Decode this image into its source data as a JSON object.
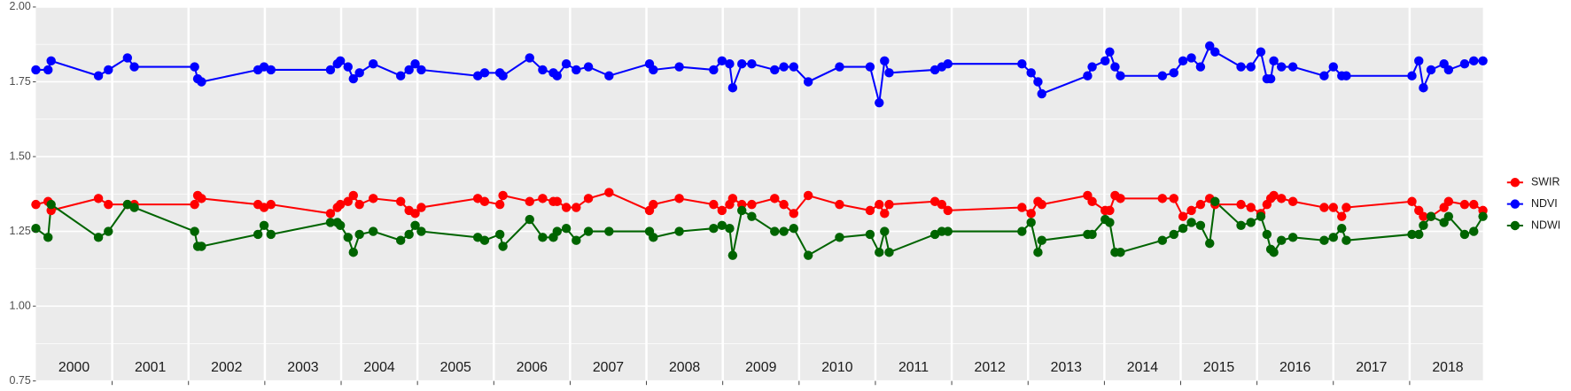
{
  "chart_data": {
    "type": "line",
    "x": [
      2000.0,
      2000.16,
      2000.2,
      2000.82,
      2000.95,
      2001.2,
      2001.29,
      2002.08,
      2002.12,
      2002.17,
      2002.91,
      2002.99,
      2003.08,
      2003.86,
      2003.95,
      2003.99,
      2004.09,
      2004.16,
      2004.24,
      2004.42,
      2004.78,
      2004.89,
      2004.97,
      2005.05,
      2005.79,
      2005.88,
      2006.08,
      2006.12,
      2006.47,
      2006.64,
      2006.78,
      2006.83,
      2006.95,
      2007.08,
      2007.24,
      2007.51,
      2008.04,
      2008.09,
      2008.43,
      2008.88,
      2008.99,
      2009.09,
      2009.13,
      2009.25,
      2009.38,
      2009.68,
      2009.8,
      2009.93,
      2010.12,
      2010.53,
      2010.93,
      2011.05,
      2011.12,
      2011.18,
      2011.78,
      2011.87,
      2011.95,
      2012.92,
      2013.04,
      2013.13,
      2013.18,
      2013.78,
      2013.84,
      2014.01,
      2014.07,
      2014.14,
      2014.21,
      2014.76,
      2014.91,
      2015.03,
      2015.14,
      2015.26,
      2015.38,
      2015.45,
      2015.79,
      2015.92,
      2016.05,
      2016.13,
      2016.18,
      2016.22,
      2016.32,
      2016.47,
      2016.88,
      2017.0,
      2017.11,
      2017.17,
      2018.03,
      2018.12,
      2018.18,
      2018.28,
      2018.45,
      2018.51,
      2018.72,
      2018.84,
      2018.96
    ],
    "series": [
      {
        "name": "SWIR",
        "color": "#ff0000",
        "values": [
          1.34,
          1.35,
          1.32,
          1.36,
          1.34,
          1.34,
          1.34,
          1.34,
          1.37,
          1.36,
          1.34,
          1.33,
          1.34,
          1.31,
          1.33,
          1.34,
          1.35,
          1.37,
          1.34,
          1.36,
          1.35,
          1.32,
          1.31,
          1.33,
          1.36,
          1.35,
          1.34,
          1.37,
          1.35,
          1.36,
          1.35,
          1.35,
          1.33,
          1.33,
          1.36,
          1.38,
          1.32,
          1.34,
          1.36,
          1.34,
          1.32,
          1.34,
          1.36,
          1.34,
          1.34,
          1.36,
          1.34,
          1.31,
          1.37,
          1.34,
          1.32,
          1.34,
          1.31,
          1.34,
          1.35,
          1.34,
          1.32,
          1.33,
          1.31,
          1.35,
          1.34,
          1.37,
          1.35,
          1.32,
          1.32,
          1.37,
          1.36,
          1.36,
          1.36,
          1.3,
          1.32,
          1.34,
          1.36,
          1.34,
          1.34,
          1.33,
          1.31,
          1.34,
          1.36,
          1.37,
          1.36,
          1.35,
          1.33,
          1.33,
          1.3,
          1.33,
          1.35,
          1.32,
          1.3,
          1.3,
          1.33,
          1.35,
          1.34,
          1.34,
          1.32
        ]
      },
      {
        "name": "NDVI",
        "color": "#0000ff",
        "values": [
          1.79,
          1.79,
          1.82,
          1.77,
          1.79,
          1.83,
          1.8,
          1.8,
          1.76,
          1.75,
          1.79,
          1.8,
          1.79,
          1.79,
          1.81,
          1.82,
          1.8,
          1.76,
          1.78,
          1.81,
          1.77,
          1.79,
          1.81,
          1.79,
          1.77,
          1.78,
          1.78,
          1.77,
          1.83,
          1.79,
          1.78,
          1.77,
          1.81,
          1.79,
          1.8,
          1.77,
          1.81,
          1.79,
          1.8,
          1.79,
          1.82,
          1.81,
          1.73,
          1.81,
          1.81,
          1.79,
          1.8,
          1.8,
          1.75,
          1.8,
          1.8,
          1.68,
          1.82,
          1.78,
          1.79,
          1.8,
          1.81,
          1.81,
          1.78,
          1.75,
          1.71,
          1.77,
          1.8,
          1.82,
          1.85,
          1.8,
          1.77,
          1.77,
          1.78,
          1.82,
          1.83,
          1.8,
          1.87,
          1.85,
          1.8,
          1.8,
          1.85,
          1.76,
          1.76,
          1.82,
          1.8,
          1.8,
          1.77,
          1.8,
          1.77,
          1.77,
          1.77,
          1.82,
          1.73,
          1.79,
          1.81,
          1.79,
          1.81,
          1.82,
          1.82
        ]
      },
      {
        "name": "NDWI",
        "color": "#006400",
        "values": [
          1.26,
          1.23,
          1.34,
          1.23,
          1.25,
          1.34,
          1.33,
          1.25,
          1.2,
          1.2,
          1.24,
          1.27,
          1.24,
          1.28,
          1.28,
          1.27,
          1.23,
          1.18,
          1.24,
          1.25,
          1.22,
          1.24,
          1.27,
          1.25,
          1.23,
          1.22,
          1.24,
          1.2,
          1.29,
          1.23,
          1.23,
          1.25,
          1.26,
          1.22,
          1.25,
          1.25,
          1.25,
          1.23,
          1.25,
          1.26,
          1.27,
          1.26,
          1.17,
          1.32,
          1.3,
          1.25,
          1.25,
          1.26,
          1.17,
          1.23,
          1.24,
          1.18,
          1.25,
          1.18,
          1.24,
          1.25,
          1.25,
          1.25,
          1.28,
          1.18,
          1.22,
          1.24,
          1.24,
          1.29,
          1.28,
          1.18,
          1.18,
          1.22,
          1.24,
          1.26,
          1.28,
          1.27,
          1.21,
          1.35,
          1.27,
          1.28,
          1.3,
          1.24,
          1.19,
          1.18,
          1.22,
          1.23,
          1.22,
          1.23,
          1.26,
          1.22,
          1.24,
          1.24,
          1.27,
          1.3,
          1.28,
          1.3,
          1.24,
          1.25,
          1.3
        ]
      }
    ],
    "xlim": [
      2000.0,
      2018.96
    ],
    "ylim": [
      0.75,
      2.0
    ],
    "yticks": [
      {
        "value": 0.75,
        "label": "0.75"
      },
      {
        "value": 1.0,
        "label": "1.00"
      },
      {
        "value": 1.25,
        "label": "1.25"
      },
      {
        "value": 1.5,
        "label": "1.50"
      },
      {
        "value": 1.75,
        "label": "1.75"
      },
      {
        "value": 2.0,
        "label": "2.00"
      }
    ],
    "year_boundaries": [
      2001,
      2002,
      2003,
      2004,
      2005,
      2006,
      2007,
      2008,
      2009,
      2010,
      2011,
      2012,
      2013,
      2014,
      2015,
      2016,
      2017,
      2018
    ],
    "year_labels": [
      {
        "value": 2000.5,
        "label": "2000"
      },
      {
        "value": 2001.5,
        "label": "2001"
      },
      {
        "value": 2002.5,
        "label": "2002"
      },
      {
        "value": 2003.5,
        "label": "2003"
      },
      {
        "value": 2004.5,
        "label": "2004"
      },
      {
        "value": 2005.5,
        "label": "2005"
      },
      {
        "value": 2006.5,
        "label": "2006"
      },
      {
        "value": 2007.5,
        "label": "2007"
      },
      {
        "value": 2008.5,
        "label": "2008"
      },
      {
        "value": 2009.5,
        "label": "2009"
      },
      {
        "value": 2010.5,
        "label": "2010"
      },
      {
        "value": 2011.5,
        "label": "2011"
      },
      {
        "value": 2012.5,
        "label": "2012"
      },
      {
        "value": 2013.5,
        "label": "2013"
      },
      {
        "value": 2014.5,
        "label": "2014"
      },
      {
        "value": 2015.5,
        "label": "2015"
      },
      {
        "value": 2016.5,
        "label": "2016"
      },
      {
        "value": 2017.5,
        "label": "2017"
      },
      {
        "value": 2018.5,
        "label": "2018"
      }
    ],
    "grid": true,
    "legend": "right"
  }
}
